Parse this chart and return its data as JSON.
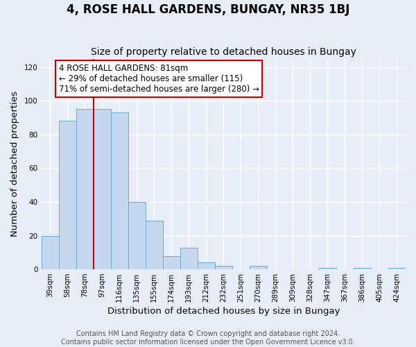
{
  "title": "4, ROSE HALL GARDENS, BUNGAY, NR35 1BJ",
  "subtitle": "Size of property relative to detached houses in Bungay",
  "xlabel": "Distribution of detached houses by size in Bungay",
  "ylabel": "Number of detached properties",
  "bar_labels": [
    "39sqm",
    "58sqm",
    "78sqm",
    "97sqm",
    "116sqm",
    "135sqm",
    "155sqm",
    "174sqm",
    "193sqm",
    "212sqm",
    "232sqm",
    "251sqm",
    "270sqm",
    "289sqm",
    "309sqm",
    "328sqm",
    "347sqm",
    "367sqm",
    "386sqm",
    "405sqm",
    "424sqm"
  ],
  "bar_values": [
    20,
    88,
    95,
    95,
    93,
    40,
    29,
    8,
    13,
    4,
    2,
    0,
    2,
    0,
    0,
    0,
    1,
    0,
    1,
    0,
    1
  ],
  "bar_color": "#c5d8f0",
  "bar_edge_color": "#6aaad4",
  "vline_color": "#cc0000",
  "annotation_title": "4 ROSE HALL GARDENS: 81sqm",
  "annotation_line1": "← 29% of detached houses are smaller (115)",
  "annotation_line2": "71% of semi-detached houses are larger (280) →",
  "annotation_box_color": "#ffffff",
  "annotation_box_edge": "#cc0000",
  "ylim": [
    0,
    125
  ],
  "yticks": [
    0,
    20,
    40,
    60,
    80,
    100,
    120
  ],
  "footer_line1": "Contains HM Land Registry data © Crown copyright and database right 2024.",
  "footer_line2": "Contains public sector information licensed under the Open Government Licence v3.0.",
  "bg_color": "#e8eef8",
  "grid_color": "#ffffff",
  "title_fontsize": 12,
  "subtitle_fontsize": 10,
  "axis_label_fontsize": 9.5,
  "tick_fontsize": 7.5,
  "annotation_fontsize": 8.5,
  "footer_fontsize": 7
}
